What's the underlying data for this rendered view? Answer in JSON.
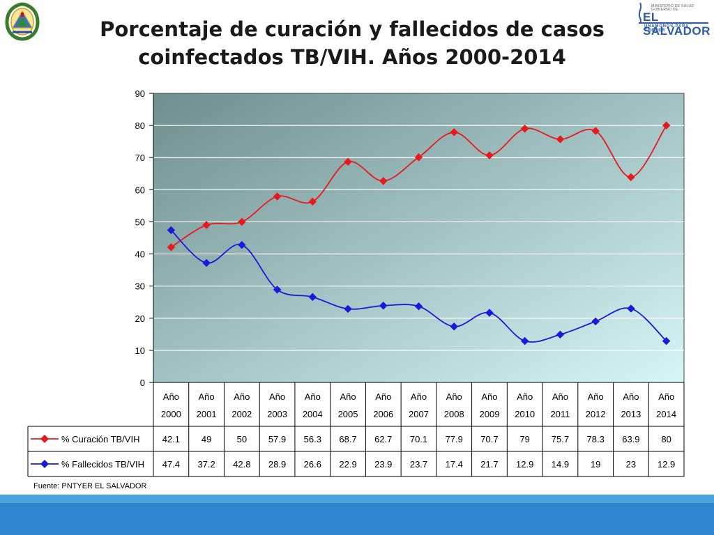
{
  "title_line1": "Porcentaje de curación y fallecidos de casos",
  "title_line2": "coinfectados TB/VIH. Años 2000-2014",
  "logo": {
    "line1": "MINISTERIO DE SALUD",
    "line2": "GOBIERNO DE",
    "line3": "EL SALVADOR",
    "line4": "UNÁMONOS PARA CRECER"
  },
  "source": "Fuente: PNTYER EL SALVADOR",
  "colors": {
    "curacion": "#e8191c",
    "fallecidos": "#1a1adb",
    "plot_dark": "#6f8e8e",
    "plot_light": "#d6f6f8",
    "footer": "#2e86cf"
  },
  "chart_data": {
    "type": "line",
    "title": "Porcentaje de curación y fallecidos de casos coinfectados TB/VIH. Años 2000-2014",
    "categories": [
      [
        "Año",
        "2000"
      ],
      [
        "Año",
        "2001"
      ],
      [
        "Año",
        "2002"
      ],
      [
        "Año",
        "2003"
      ],
      [
        "Año",
        "2004"
      ],
      [
        "Año",
        "2005"
      ],
      [
        "Año",
        "2006"
      ],
      [
        "Año",
        "2007"
      ],
      [
        "Año",
        "2008"
      ],
      [
        "Año",
        "2009"
      ],
      [
        "Año",
        "2010"
      ],
      [
        "Año",
        "2011"
      ],
      [
        "Año",
        "2012"
      ],
      [
        "Año",
        "2013"
      ],
      [
        "Año",
        "2014"
      ]
    ],
    "series": [
      {
        "name": "% Curación TB/VIH",
        "color": "#e8191c",
        "marker": "diamond",
        "values": [
          42.1,
          49,
          50,
          57.9,
          56.3,
          68.7,
          62.7,
          70.1,
          77.9,
          70.7,
          79,
          75.7,
          78.3,
          63.9,
          80
        ],
        "labels": [
          "42.1",
          "49",
          "50",
          "57.9",
          "56.3",
          "68.7",
          "62.7",
          "70.1",
          "77.9",
          "70.7",
          "79",
          "75.7",
          "78.3",
          "63.9",
          "80"
        ]
      },
      {
        "name": "% Fallecidos TB/VIH",
        "color": "#1a1adb",
        "marker": "diamond",
        "values": [
          47.4,
          37.2,
          42.8,
          28.9,
          26.6,
          22.9,
          23.9,
          23.7,
          17.4,
          21.7,
          12.9,
          14.9,
          19,
          23,
          12.9
        ],
        "labels": [
          "47.4",
          "37.2",
          "42.8",
          "28.9",
          "26.6",
          "22.9",
          "23.9",
          "23.7",
          "17.4",
          "21.7",
          "12.9",
          "14.9",
          "19",
          "23",
          "12.9"
        ]
      }
    ],
    "yticks": [
      0,
      10,
      20,
      30,
      40,
      50,
      60,
      70,
      80,
      90
    ],
    "ylim": [
      0,
      90
    ],
    "smooth": true,
    "grid": true,
    "legend": "data-table-below"
  }
}
